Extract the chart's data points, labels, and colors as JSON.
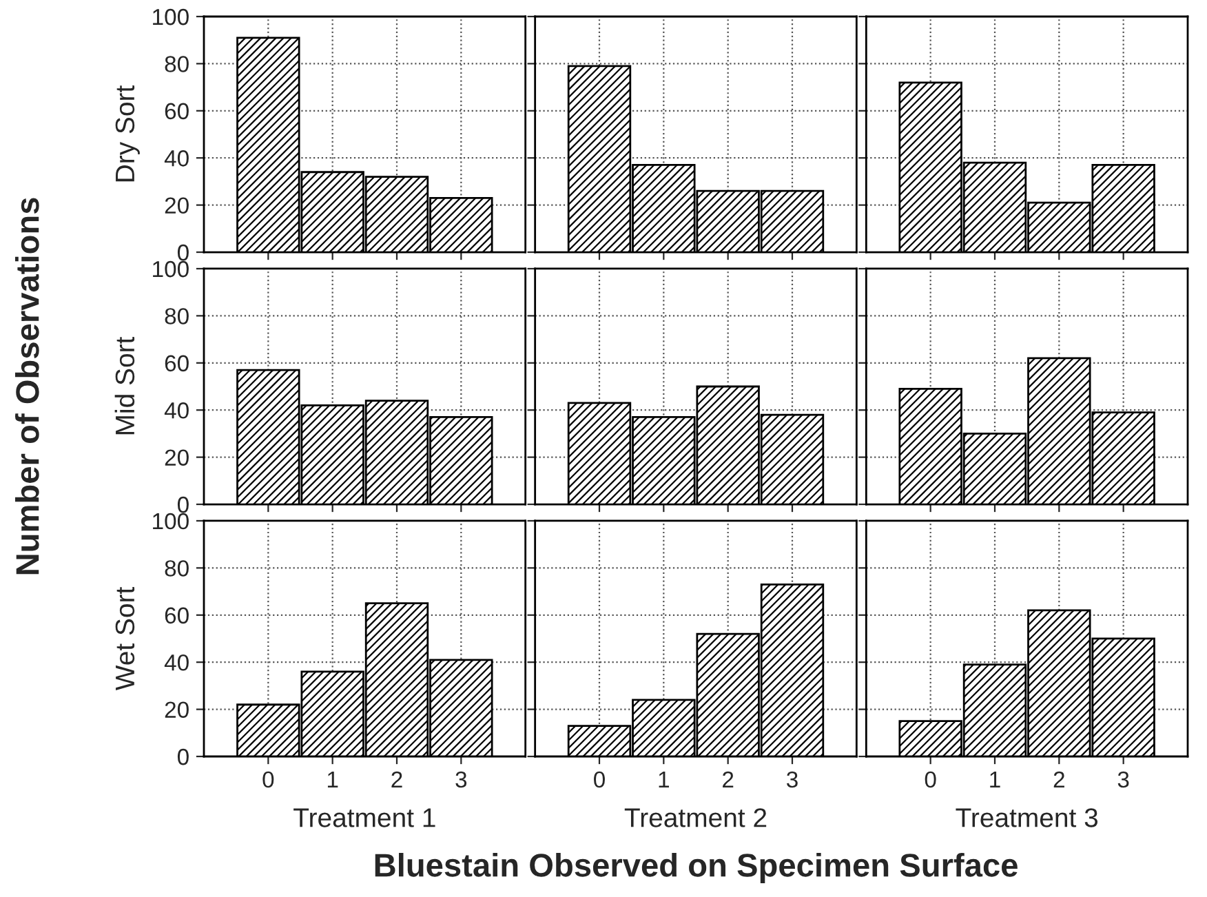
{
  "chart_data": [
    {
      "type": "bar",
      "ylabel": "Dry Sort",
      "categories": [
        "0",
        "1",
        "2",
        "3"
      ],
      "values": [
        91,
        34,
        32,
        23
      ],
      "color": "#000000",
      "ylim": [
        0,
        100
      ],
      "yticks": [
        0,
        20,
        40,
        60,
        80,
        100
      ],
      "grid": true,
      "tick_labels": "y"
    },
    {
      "type": "bar",
      "categories": [
        "0",
        "1",
        "2",
        "3"
      ],
      "values": [
        79,
        37,
        26,
        26
      ],
      "color": "#000000",
      "ylim": [
        0,
        100
      ],
      "yticks": [
        0,
        20,
        40,
        60,
        80,
        100
      ],
      "grid": true,
      "tick_labels": false
    },
    {
      "type": "bar",
      "categories": [
        "0",
        "1",
        "2",
        "3"
      ],
      "values": [
        72,
        38,
        21,
        37
      ],
      "color": "#000000",
      "ylim": [
        0,
        100
      ],
      "yticks": [
        0,
        20,
        40,
        60,
        80,
        100
      ],
      "grid": true,
      "tick_labels": false
    },
    {
      "type": "bar",
      "ylabel": "Mid Sort",
      "categories": [
        "0",
        "1",
        "2",
        "3"
      ],
      "values": [
        57,
        42,
        44,
        37
      ],
      "color": "#000000",
      "ylim": [
        0,
        100
      ],
      "yticks": [
        0,
        20,
        40,
        60,
        80,
        100
      ],
      "grid": true,
      "tick_labels": "y",
      "annotations": [
        "Number of Observations"
      ]
    },
    {
      "type": "bar",
      "categories": [
        "0",
        "1",
        "2",
        "3"
      ],
      "values": [
        43,
        37,
        50,
        38
      ],
      "color": "#000000",
      "ylim": [
        0,
        100
      ],
      "yticks": [
        0,
        20,
        40,
        60,
        80,
        100
      ],
      "grid": true,
      "tick_labels": false
    },
    {
      "type": "bar",
      "categories": [
        "0",
        "1",
        "2",
        "3"
      ],
      "values": [
        49,
        30,
        62,
        39
      ],
      "color": "#000000",
      "ylim": [
        0,
        100
      ],
      "yticks": [
        0,
        20,
        40,
        60,
        80,
        100
      ],
      "grid": true,
      "tick_labels": false
    },
    {
      "type": "bar",
      "ylabel": "Wet Sort",
      "xlabel": "Treatment 1",
      "categories": [
        "0",
        "1",
        "2",
        "3"
      ],
      "values": [
        22,
        36,
        65,
        41
      ],
      "color": "#000000",
      "ylim": [
        0,
        100
      ],
      "yticks": [
        0,
        20,
        40,
        60,
        80,
        100
      ],
      "grid": true
    },
    {
      "type": "bar",
      "xlabel": "Treatment 2",
      "categories": [
        "0",
        "1",
        "2",
        "3"
      ],
      "values": [
        13,
        24,
        52,
        73
      ],
      "color": "#000000",
      "ylim": [
        0,
        100
      ],
      "yticks": [
        0,
        20,
        40,
        60,
        80,
        100
      ],
      "grid": true,
      "tick_labels": "x",
      "annotations": [
        "Bluestain Observed on Specimen Surface"
      ]
    },
    {
      "type": "bar",
      "xlabel": "Treatment 3",
      "categories": [
        "0",
        "1",
        "2",
        "3"
      ],
      "values": [
        15,
        39,
        62,
        50
      ],
      "color": "#000000",
      "ylim": [
        0,
        100
      ],
      "yticks": [
        0,
        20,
        40,
        60,
        80,
        100
      ],
      "grid": true,
      "tick_labels": "x"
    }
  ]
}
